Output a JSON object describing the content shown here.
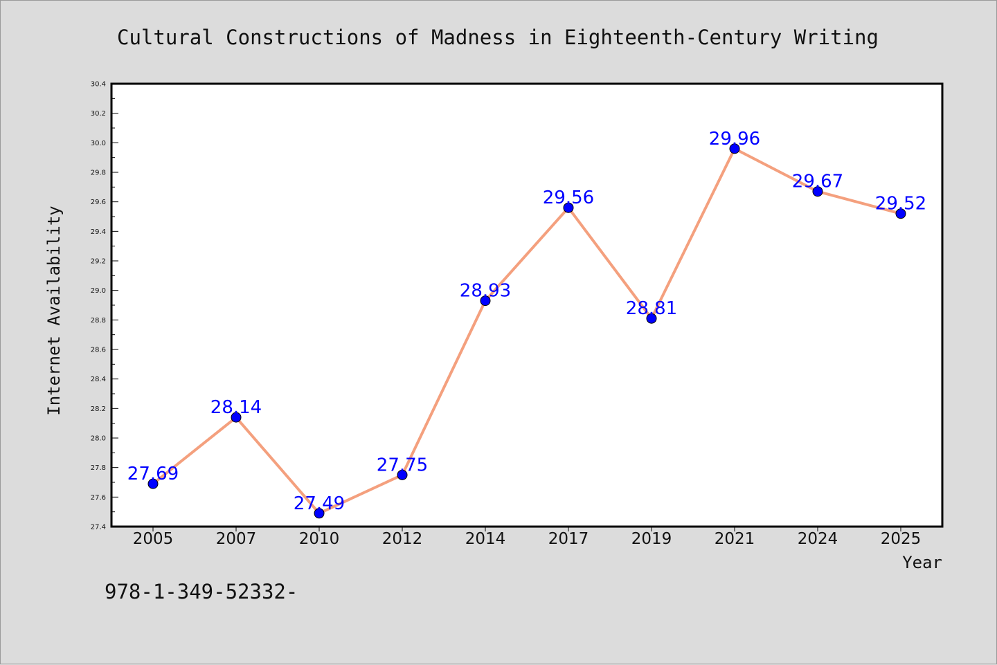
{
  "chart_data": {
    "type": "line",
    "title": "Cultural Constructions of Madness in Eighteenth-Century Writing",
    "xlabel": "Year",
    "ylabel": "Internet Availability",
    "categories": [
      "2005",
      "2007",
      "2010",
      "2012",
      "2014",
      "2017",
      "2019",
      "2021",
      "2024",
      "2025"
    ],
    "series": [
      {
        "values": [
          27.69,
          28.14,
          27.49,
          27.75,
          28.93,
          29.56,
          28.81,
          29.96,
          29.67,
          29.52
        ],
        "line_color": "#f4a07e",
        "marker_color": "#0000ff"
      }
    ],
    "ylim": [
      27.4,
      30.4
    ],
    "yticks": [
      "27.4",
      "27.6",
      "27.8",
      "28.0",
      "28.2",
      "28.4",
      "28.6",
      "28.8",
      "29.0",
      "29.2",
      "29.4",
      "29.6",
      "29.8",
      "30.0",
      "30.2",
      "30.4"
    ],
    "data_labels": [
      "27.69",
      "28.14",
      "27.49",
      "27.75",
      "28.93",
      "29.56",
      "28.81",
      "29.96",
      "29.67",
      "29.52"
    ],
    "grid": false,
    "legend": "none"
  },
  "footer": {
    "isbn": "978-1-349-52332-"
  },
  "colors": {
    "background": "#dcdcdc",
    "plot_area": "#ffffff",
    "line": "#f4a07e",
    "marker": "#0000ff",
    "data_label": "#0000ff"
  }
}
